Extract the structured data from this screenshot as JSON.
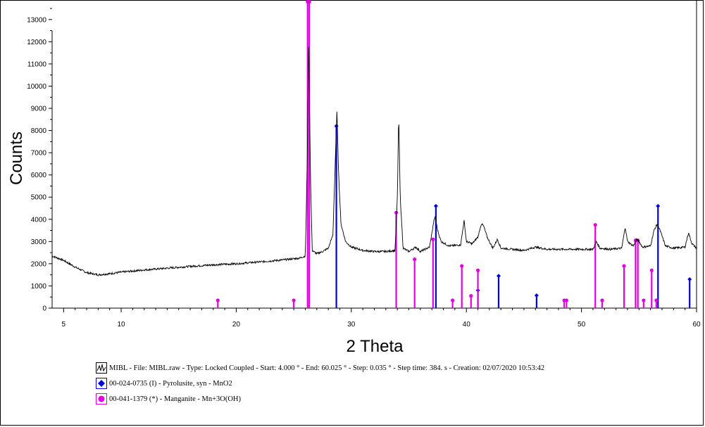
{
  "chart_data": {
    "type": "line",
    "xlabel": "2 Theta",
    "ylabel": "Counts",
    "xlim": [
      4,
      60
    ],
    "ylim": [
      0,
      13500
    ],
    "x_ticks": [
      5,
      10,
      20,
      30,
      40,
      50,
      60
    ],
    "y_ticks": [
      0,
      1000,
      2000,
      3000,
      4000,
      5000,
      6000,
      7000,
      8000,
      9000,
      10000,
      11000,
      12000,
      13000
    ],
    "grid": false,
    "legend_position": "bottom",
    "colors": {
      "pattern": "#000000",
      "pyrolusite": "#0000e0",
      "manganite": "#e000e0"
    },
    "series": [
      {
        "name": "MIBL - File: MIBL.raw - Type: Locked Coupled - Start: 4.000 ° - End: 60.025 ° - Step: 0.035 ° - Step time: 384. s - Creation: 02/07/2020 10:53:42",
        "kind": "pattern",
        "points": [
          [
            4.0,
            2350
          ],
          [
            5.0,
            2150
          ],
          [
            6.0,
            1850
          ],
          [
            7.0,
            1600
          ],
          [
            8.0,
            1500
          ],
          [
            9.0,
            1550
          ],
          [
            10.0,
            1620
          ],
          [
            12.0,
            1720
          ],
          [
            14.0,
            1800
          ],
          [
            16.0,
            1880
          ],
          [
            18.0,
            1950
          ],
          [
            20.0,
            2000
          ],
          [
            22.0,
            2080
          ],
          [
            24.0,
            2170
          ],
          [
            25.5,
            2250
          ],
          [
            26.0,
            2350
          ],
          [
            26.15,
            6000
          ],
          [
            26.3,
            12000
          ],
          [
            26.45,
            6000
          ],
          [
            26.6,
            2600
          ],
          [
            27.0,
            2450
          ],
          [
            27.5,
            2550
          ],
          [
            28.0,
            2700
          ],
          [
            28.4,
            3300
          ],
          [
            28.6,
            6500
          ],
          [
            28.75,
            8900
          ],
          [
            28.9,
            6000
          ],
          [
            29.1,
            3800
          ],
          [
            29.5,
            3000
          ],
          [
            30.0,
            2750
          ],
          [
            31.0,
            2600
          ],
          [
            32.0,
            2550
          ],
          [
            33.0,
            2550
          ],
          [
            33.8,
            2600
          ],
          [
            34.0,
            5000
          ],
          [
            34.12,
            8700
          ],
          [
            34.25,
            5000
          ],
          [
            34.5,
            2700
          ],
          [
            35.0,
            2550
          ],
          [
            35.6,
            2750
          ],
          [
            36.0,
            2550
          ],
          [
            36.8,
            2750
          ],
          [
            37.2,
            4000
          ],
          [
            37.3,
            4100
          ],
          [
            37.5,
            3500
          ],
          [
            37.8,
            3000
          ],
          [
            38.5,
            2800
          ],
          [
            39.5,
            2850
          ],
          [
            39.8,
            3950
          ],
          [
            40.0,
            3000
          ],
          [
            40.5,
            2900
          ],
          [
            41.0,
            3200
          ],
          [
            41.3,
            3800
          ],
          [
            41.5,
            3700
          ],
          [
            41.8,
            3200
          ],
          [
            42.3,
            2700
          ],
          [
            42.7,
            3100
          ],
          [
            43.0,
            2700
          ],
          [
            44.0,
            2650
          ],
          [
            45.0,
            2600
          ],
          [
            46.0,
            2750
          ],
          [
            47.0,
            2650
          ],
          [
            48.0,
            2650
          ],
          [
            49.0,
            2650
          ],
          [
            50.0,
            2650
          ],
          [
            51.0,
            2650
          ],
          [
            51.3,
            3000
          ],
          [
            51.6,
            2700
          ],
          [
            52.5,
            2650
          ],
          [
            53.5,
            2700
          ],
          [
            53.8,
            3650
          ],
          [
            54.0,
            3000
          ],
          [
            54.5,
            2800
          ],
          [
            54.8,
            3100
          ],
          [
            55.0,
            3000
          ],
          [
            55.3,
            2750
          ],
          [
            56.0,
            2800
          ],
          [
            56.3,
            3500
          ],
          [
            56.6,
            3800
          ],
          [
            56.9,
            3400
          ],
          [
            57.3,
            2800
          ],
          [
            58.0,
            2700
          ],
          [
            59.0,
            2750
          ],
          [
            59.3,
            3400
          ],
          [
            59.6,
            2900
          ],
          [
            60.0,
            2700
          ]
        ]
      },
      {
        "name": "00-024-0735 (I) - Pyrolusite, syn - MnO2",
        "kind": "sticks",
        "marker": "diamond",
        "x": [
          28.7,
          37.35,
          41.0,
          42.8,
          46.1,
          56.65,
          59.4
        ],
        "values": [
          8200,
          4600,
          800,
          1450,
          570,
          4600,
          1300
        ]
      },
      {
        "name": "00-041-1379 (*) - Manganite - Mn+3O(OH)",
        "kind": "sticks",
        "marker": "circle",
        "x": [
          18.4,
          25.0,
          26.2,
          26.35,
          33.9,
          35.5,
          37.1,
          38.8,
          39.6,
          40.4,
          41.0,
          48.5,
          48.7,
          51.2,
          51.8,
          53.7,
          54.7,
          54.9,
          55.4,
          56.1,
          56.5
        ],
        "values": [
          350,
          350,
          13800,
          13800,
          4300,
          2200,
          3100,
          350,
          1900,
          550,
          1700,
          350,
          350,
          3750,
          350,
          1900,
          3050,
          3050,
          350,
          1700,
          350
        ]
      }
    ]
  }
}
